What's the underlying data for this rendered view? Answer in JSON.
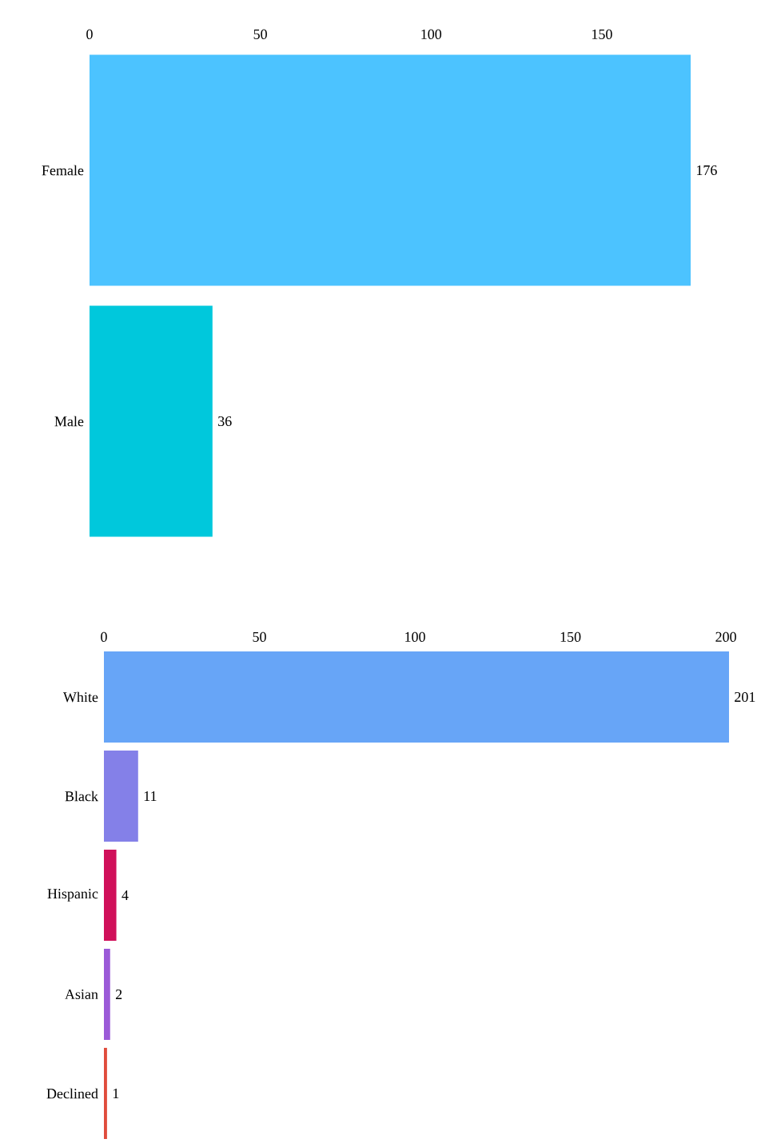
{
  "chart_data": [
    {
      "type": "bar",
      "orientation": "horizontal",
      "categories": [
        "Female",
        "Male"
      ],
      "values": [
        176,
        36
      ],
      "colors": [
        "#4cc3ff",
        "#00c8dc"
      ],
      "xlim": [
        0,
        176
      ],
      "xticks": [
        0,
        50,
        100,
        150
      ],
      "data_labels": true
    },
    {
      "type": "bar",
      "orientation": "horizontal",
      "categories": [
        "White",
        "Black",
        "Hispanic",
        "Asian",
        "Declined"
      ],
      "values": [
        201,
        11,
        4,
        2,
        1
      ],
      "colors": [
        "#67a5f7",
        "#8480e8",
        "#d0105a",
        "#9b5ad8",
        "#e04c3c"
      ],
      "xlim": [
        0,
        201
      ],
      "xticks": [
        0,
        50,
        100,
        150,
        200
      ],
      "data_labels": true
    }
  ]
}
